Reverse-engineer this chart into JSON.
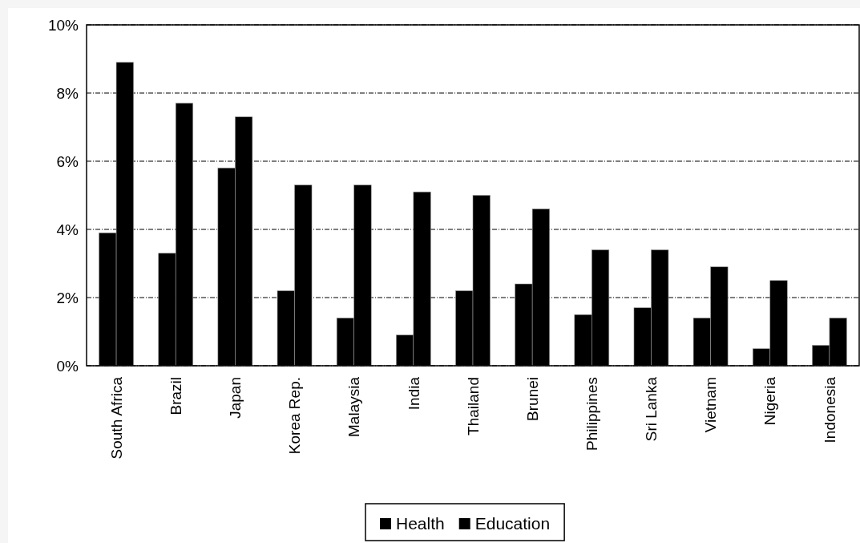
{
  "chart_data": {
    "type": "bar",
    "categories": [
      "South Africa",
      "Brazil",
      "Japan",
      "Korea Rep.",
      "Malaysia",
      "India",
      "Thailand",
      "Brunei",
      "Philippines",
      "Sri Lanka",
      "Vietnam",
      "Nigeria",
      "Indonesia"
    ],
    "series": [
      {
        "name": "Health",
        "color": "#000000",
        "values": [
          3.9,
          3.3,
          5.8,
          2.2,
          1.4,
          0.9,
          2.2,
          2.4,
          1.5,
          1.7,
          1.4,
          0.5,
          0.6
        ]
      },
      {
        "name": "Education",
        "color": "#000000",
        "values": [
          8.9,
          7.7,
          7.3,
          5.3,
          5.3,
          5.1,
          5.0,
          4.6,
          3.4,
          3.4,
          2.9,
          2.5,
          1.4
        ]
      }
    ],
    "ylim": [
      0,
      10
    ],
    "yticks": [
      {
        "value": 0,
        "label": "0%"
      },
      {
        "value": 2,
        "label": "2%"
      },
      {
        "value": 4,
        "label": "4%"
      },
      {
        "value": 6,
        "label": "6%"
      },
      {
        "value": 8,
        "label": "8%"
      },
      {
        "value": 10,
        "label": "10%"
      }
    ],
    "grid": "y",
    "legend": "bottom"
  }
}
